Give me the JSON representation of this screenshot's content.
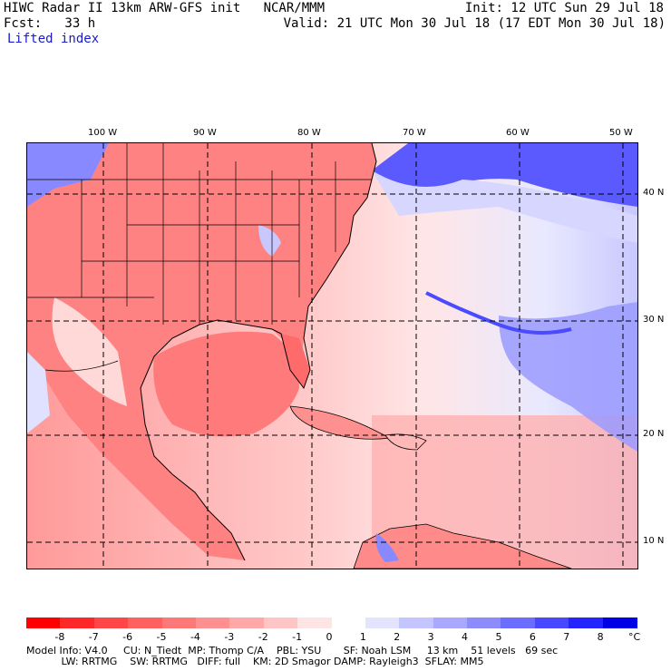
{
  "header": {
    "line1_left": "HIWC Radar II 13km ARW-GFS init   NCAR/MMM",
    "line1_right": "Init: 12 UTC Sun 29 Jul 18",
    "line2_left": "Fcst:   33 h",
    "line2_right": "Valid: 21 UTC Mon 30 Jul 18 (17 EDT Mon 30 Jul 18)",
    "field_name": "Lifted index"
  },
  "map": {
    "lon_labels": [
      "100 W",
      "90 W",
      "80 W",
      "70 W",
      "60 W",
      "50 W"
    ],
    "lat_labels": [
      "40 N",
      "30 N",
      "20 N",
      "10 N"
    ]
  },
  "colorbar": {
    "labels": [
      "-8",
      "-7",
      "-6",
      "-5",
      "-4",
      "-3",
      "-2",
      "-1",
      "0",
      "1",
      "2",
      "3",
      "4",
      "5",
      "6",
      "7",
      "8"
    ],
    "unit": "°C",
    "colors": [
      "#ff0000",
      "#ff2828",
      "#ff4646",
      "#ff6060",
      "#ff7878",
      "#ff9090",
      "#ffa8a8",
      "#ffc4c4",
      "#ffe4e4",
      "#ffffff",
      "#e4e4ff",
      "#c4c4ff",
      "#a8a8ff",
      "#8c8cff",
      "#6c6cff",
      "#4848ff",
      "#2424ff",
      "#0000e6"
    ]
  },
  "footer": {
    "line1": "Model Info: V4.0     CU: N_Tiedt  MP: Thomp C/A    PBL: YSU       SF: Noah LSM     13 km    51 levels   69 sec",
    "line2": "           LW: RRTMG    SW: RRTMG   DIFF: full    KM: 2D Smagor DAMP: Rayleigh3  SFLAY: MM5"
  }
}
